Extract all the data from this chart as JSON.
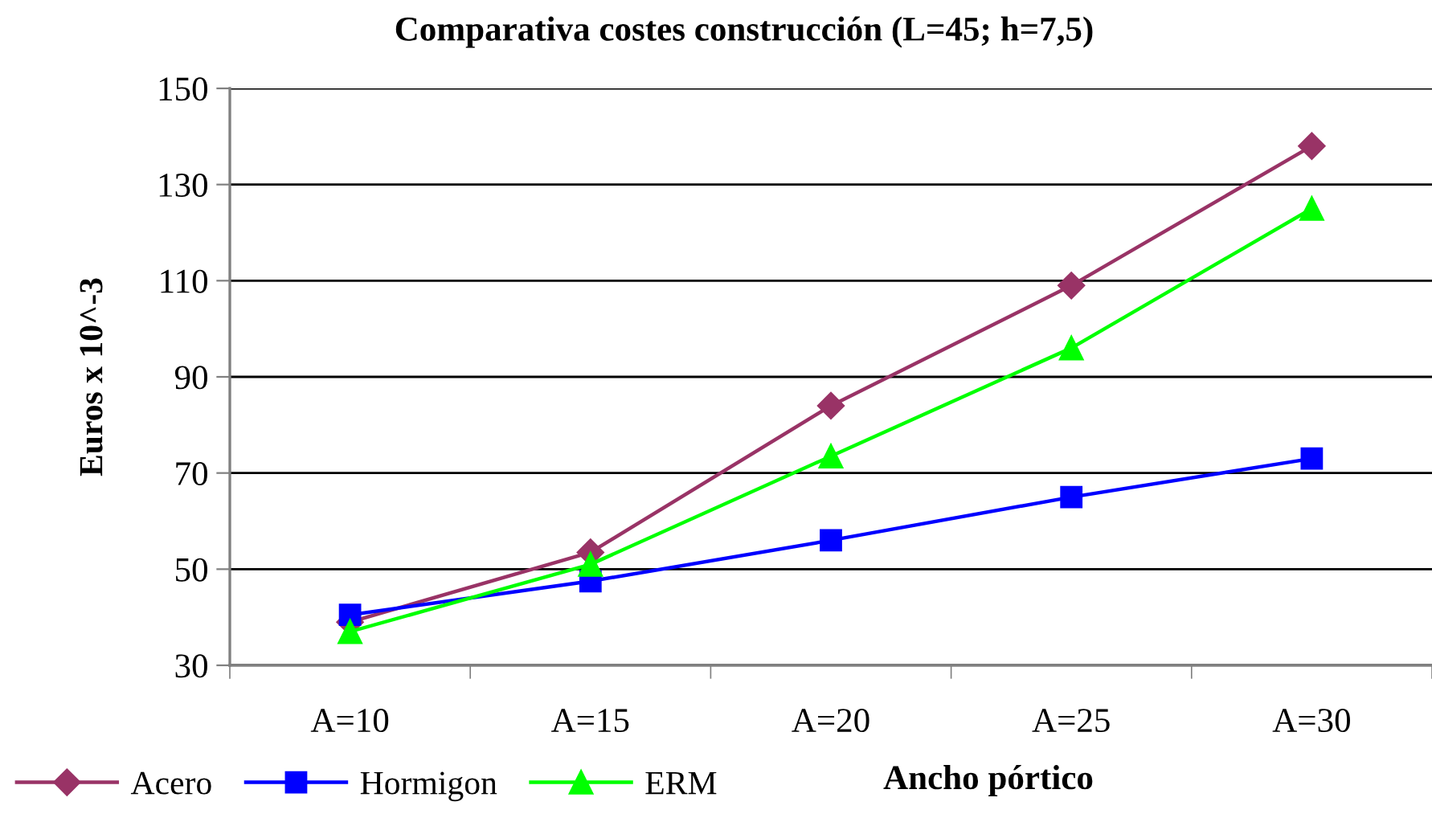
{
  "chart_data": {
    "type": "line",
    "title": "Comparativa costes construcción (L=45; h=7,5)",
    "xlabel": "Ancho pórtico",
    "ylabel": "Euros x 10^-3",
    "categories": [
      "A=10",
      "A=15",
      "A=20",
      "A=25",
      "A=30"
    ],
    "series": [
      {
        "name": "Acero",
        "color": "#993366",
        "marker": "diamond",
        "values": [
          39,
          53.5,
          84,
          109,
          138
        ]
      },
      {
        "name": "Hormigon",
        "color": "#0000ff",
        "marker": "square",
        "values": [
          40.5,
          47.5,
          56,
          65,
          73
        ]
      },
      {
        "name": "ERM",
        "color": "#00ff00",
        "marker": "triangle",
        "values": [
          37,
          51,
          73.5,
          96,
          125
        ]
      }
    ],
    "ylim": [
      30,
      150
    ],
    "yticks": [
      30,
      50,
      70,
      90,
      110,
      130,
      150
    ],
    "grid": "y",
    "legend": "bottom left",
    "line_style": "solid"
  }
}
